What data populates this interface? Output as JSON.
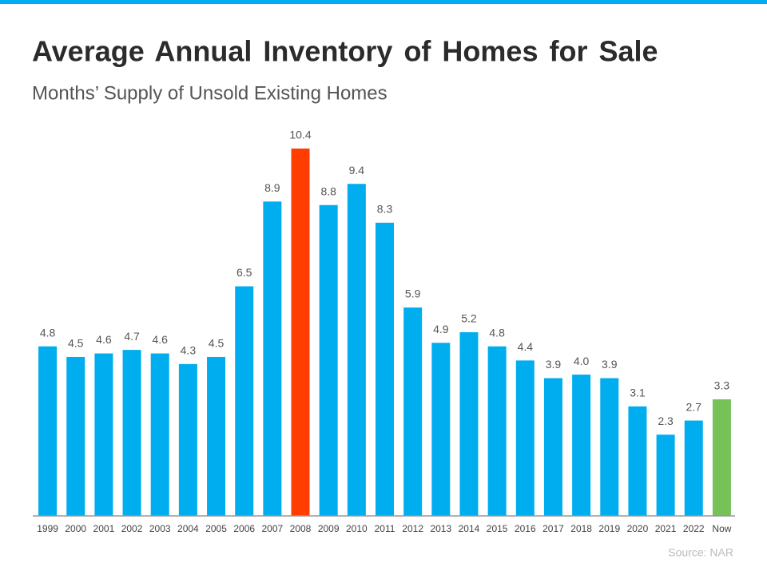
{
  "chart_data": {
    "type": "bar",
    "title": "Average Annual Inventory of Homes for Sale",
    "subtitle": "Months’ Supply of Unsold Existing Homes",
    "source": "Source: NAR",
    "categories": [
      "1999",
      "2000",
      "2001",
      "2002",
      "2003",
      "2004",
      "2005",
      "2006",
      "2007",
      "2008",
      "2009",
      "2010",
      "2011",
      "2012",
      "2013",
      "2014",
      "2015",
      "2016",
      "2017",
      "2018",
      "2019",
      "2020",
      "2021",
      "2022",
      "Now"
    ],
    "values": [
      4.8,
      4.5,
      4.6,
      4.7,
      4.6,
      4.3,
      4.5,
      6.5,
      8.9,
      10.4,
      8.8,
      9.4,
      8.3,
      5.9,
      4.9,
      5.2,
      4.8,
      4.4,
      3.9,
      4.0,
      3.9,
      3.1,
      2.3,
      2.7,
      3.3
    ],
    "value_labels": [
      "4.8",
      "4.5",
      "4.6",
      "4.7",
      "4.6",
      "4.3",
      "4.5",
      "6.5",
      "8.9",
      "10.4",
      "8.8",
      "9.4",
      "8.3",
      "5.9",
      "4.9",
      "5.2",
      "4.8",
      "4.4",
      "3.9",
      "4.0",
      "3.9",
      "3.1",
      "2.3",
      "2.7",
      "3.3"
    ],
    "colors": [
      "#00aeef",
      "#00aeef",
      "#00aeef",
      "#00aeef",
      "#00aeef",
      "#00aeef",
      "#00aeef",
      "#00aeef",
      "#00aeef",
      "#ff3d00",
      "#00aeef",
      "#00aeef",
      "#00aeef",
      "#00aeef",
      "#00aeef",
      "#00aeef",
      "#00aeef",
      "#00aeef",
      "#00aeef",
      "#00aeef",
      "#00aeef",
      "#00aeef",
      "#00aeef",
      "#00aeef",
      "#77c159"
    ]
  }
}
